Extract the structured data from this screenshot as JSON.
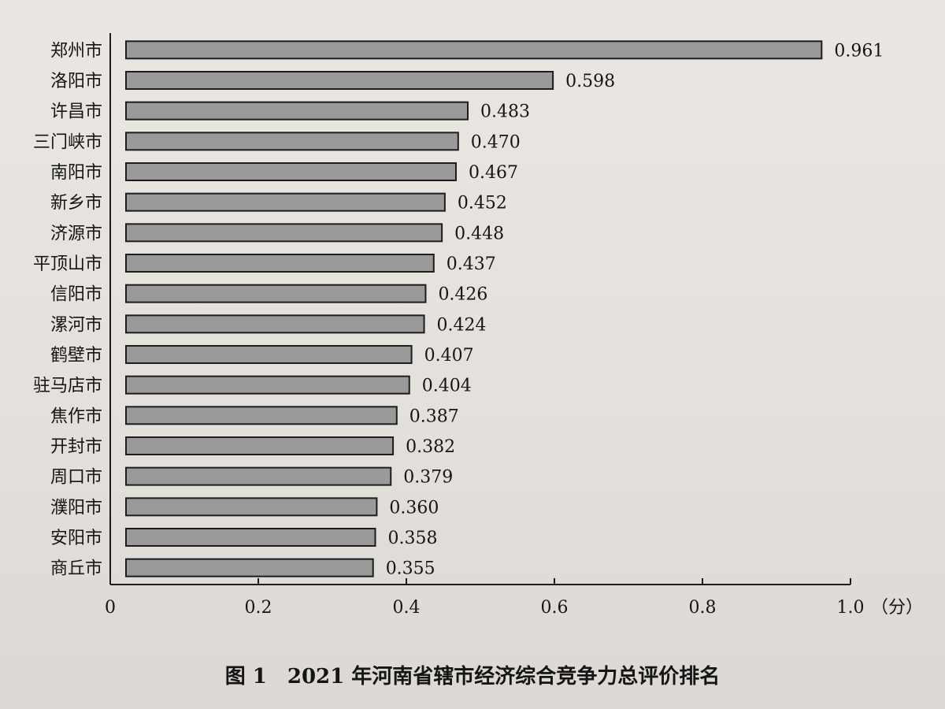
{
  "chart_data": {
    "type": "bar",
    "orientation": "horizontal",
    "title": "图 1　2021 年河南省辖市经济综合竞争力总评价排名",
    "xlabel": "（分）",
    "ylabel": "",
    "xlim": [
      0,
      1.0
    ],
    "x_ticks": [
      "0",
      "0.2",
      "0.4",
      "0.6",
      "0.8",
      "1.0"
    ],
    "grid": false,
    "legend": "none",
    "bar_color": "#9a9a9a",
    "categories": [
      "郑州市",
      "洛阳市",
      "许昌市",
      "三门峡市",
      "南阳市",
      "新乡市",
      "济源市",
      "平顶山市",
      "信阳市",
      "漯河市",
      "鹤壁市",
      "驻马店市",
      "焦作市",
      "开封市",
      "周口市",
      "濮阳市",
      "安阳市",
      "商丘市"
    ],
    "values": [
      0.961,
      0.598,
      0.483,
      0.47,
      0.467,
      0.452,
      0.448,
      0.437,
      0.426,
      0.424,
      0.407,
      0.404,
      0.387,
      0.382,
      0.379,
      0.36,
      0.358,
      0.355
    ],
    "value_labels": [
      "0.961",
      "0.598",
      "0.483",
      "0.470",
      "0.467",
      "0.452",
      "0.448",
      "0.437",
      "0.426",
      "0.424",
      "0.407",
      "0.404",
      "0.387",
      "0.382",
      "0.379",
      "0.360",
      "0.358",
      "0.355"
    ]
  }
}
